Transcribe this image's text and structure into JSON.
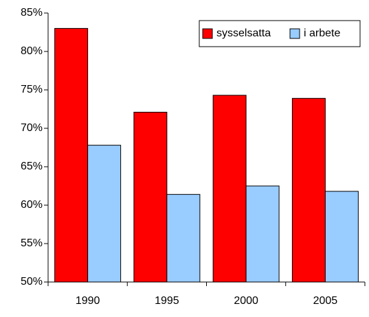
{
  "chart_data": {
    "type": "bar",
    "categories": [
      "1990",
      "1995",
      "2000",
      "2005"
    ],
    "series": [
      {
        "name": "sysselsatta",
        "color": "#ff0000",
        "values": [
          83.0,
          72.1,
          74.3,
          73.9
        ]
      },
      {
        "name": "i arbete",
        "color": "#99ccff",
        "values": [
          67.8,
          61.4,
          62.5,
          61.8
        ]
      }
    ],
    "ylim": [
      50,
      85
    ],
    "yticks": [
      {
        "value": 50,
        "label": "50%"
      },
      {
        "value": 55,
        "label": "55%"
      },
      {
        "value": 60,
        "label": "60%"
      },
      {
        "value": 65,
        "label": "65%"
      },
      {
        "value": 70,
        "label": "70%"
      },
      {
        "value": 75,
        "label": "75%"
      },
      {
        "value": 80,
        "label": "80%"
      },
      {
        "value": 85,
        "label": "85%"
      }
    ],
    "grid": false,
    "legend": "top-right"
  }
}
